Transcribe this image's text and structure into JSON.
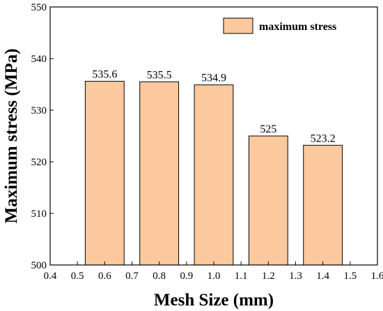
{
  "chart_data": {
    "type": "bar",
    "x": [
      0.6,
      0.8,
      1.0,
      1.2,
      1.4
    ],
    "categories": [
      "0.6",
      "0.8",
      "1.0",
      "1.2",
      "1.4"
    ],
    "series": [
      {
        "name": "maximum stress",
        "values": [
          535.6,
          535.5,
          534.9,
          525,
          523.2
        ],
        "labels": [
          "535.6",
          "535.5",
          "534.9",
          "525",
          "523.2"
        ],
        "color": "#fbc99d"
      }
    ],
    "bar_width_data": 0.14,
    "xlabel": "Mesh Size (mm)",
    "ylabel": "Maximum stress (MPa)",
    "xlim": [
      0.4,
      1.6
    ],
    "ylim": [
      500,
      550
    ],
    "x_ticks": [
      0.4,
      0.5,
      0.6,
      0.7,
      0.8,
      0.9,
      1.0,
      1.1,
      1.2,
      1.3,
      1.4,
      1.5,
      1.6
    ],
    "x_tick_labels": [
      "0.4",
      "0.5",
      "0.6",
      "0.7",
      "0.8",
      "0.9",
      "1.0",
      "1.1",
      "1.2",
      "1.3",
      "1.4",
      "1.5",
      "1.6"
    ],
    "y_ticks": [
      500,
      510,
      520,
      530,
      540,
      550
    ],
    "y_tick_labels": [
      "500",
      "510",
      "520",
      "530",
      "540",
      "550"
    ],
    "grid": false,
    "legend_position": "top-right"
  }
}
